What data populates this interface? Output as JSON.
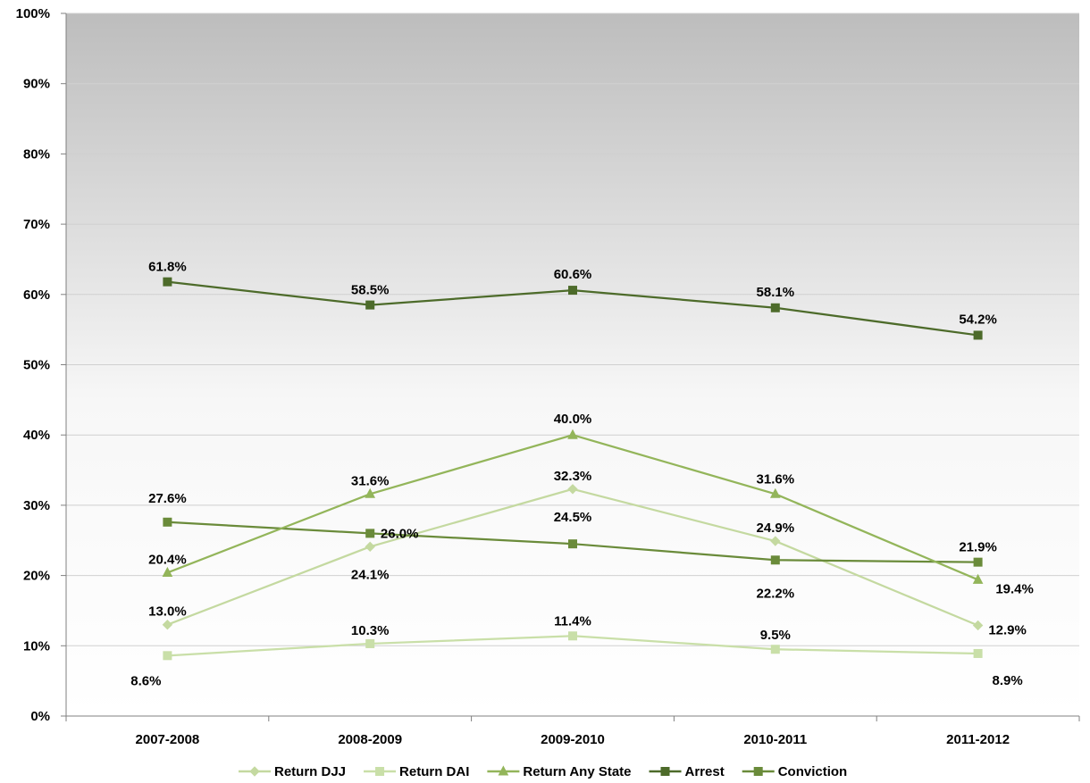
{
  "chart_data": {
    "type": "line",
    "title": "",
    "xlabel": "",
    "ylabel": "",
    "categories": [
      "2007-2008",
      "2008-2009",
      "2009-2010",
      "2010-2011",
      "2011-2012"
    ],
    "ylim": [
      0,
      100
    ],
    "yticks": [
      0,
      10,
      20,
      30,
      40,
      50,
      60,
      70,
      80,
      90,
      100
    ],
    "ytick_labels": [
      "0%",
      "10%",
      "20%",
      "30%",
      "40%",
      "50%",
      "60%",
      "70%",
      "80%",
      "90%",
      "100%"
    ],
    "grid": true,
    "legend_position": "bottom",
    "series": [
      {
        "name": "Return DJJ",
        "marker": "diamond",
        "color": "#c4d9a0",
        "values": [
          13.0,
          24.1,
          32.3,
          24.9,
          12.9
        ],
        "labels": [
          "13.0%",
          "24.1%",
          "32.3%",
          "24.9%",
          "12.9%"
        ]
      },
      {
        "name": "Return DAI",
        "marker": "square",
        "color": "#c9dfa8",
        "values": [
          8.6,
          10.3,
          11.4,
          9.5,
          8.9
        ],
        "labels": [
          "8.6%",
          "10.3%",
          "11.4%",
          "9.5%",
          "8.9%"
        ]
      },
      {
        "name": "Return Any State",
        "marker": "triangle",
        "color": "#93b55a",
        "values": [
          20.4,
          31.6,
          40.0,
          31.6,
          19.4
        ],
        "labels": [
          "20.4%",
          "31.6%",
          "40.0%",
          "31.6%",
          "19.4%"
        ]
      },
      {
        "name": "Arrest",
        "marker": "square",
        "color": "#4d6b2a",
        "values": [
          61.8,
          58.5,
          60.6,
          58.1,
          54.2
        ],
        "labels": [
          "61.8%",
          "58.5%",
          "60.6%",
          "58.1%",
          "54.2%"
        ]
      },
      {
        "name": "Conviction",
        "marker": "square",
        "color": "#6a8b3a",
        "values": [
          27.6,
          26.0,
          24.5,
          22.2,
          21.9
        ],
        "labels": [
          "27.6%",
          "26.0%",
          "24.5%",
          "22.2%",
          "21.9%"
        ]
      }
    ]
  }
}
